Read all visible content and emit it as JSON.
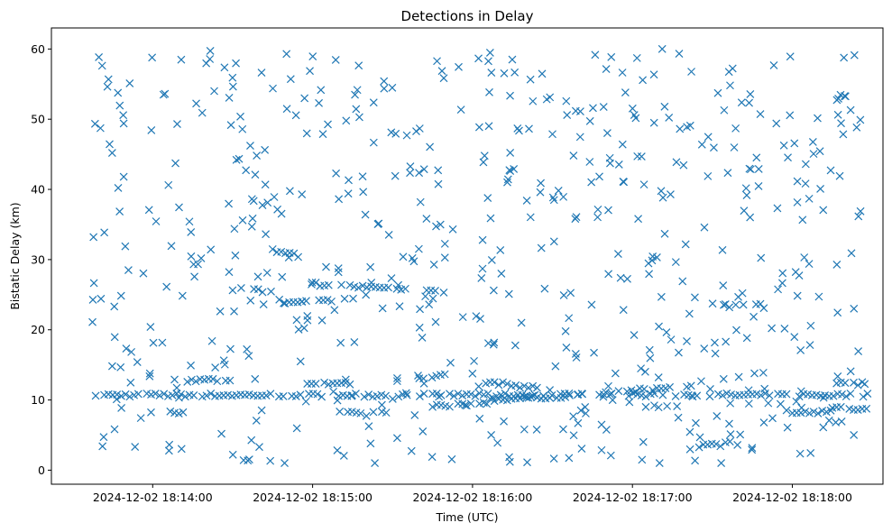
{
  "chart_data": {
    "type": "scatter",
    "title": "Detections in Delay",
    "xlabel": "Time (UTC)",
    "ylabel": "Bistatic Delay (km)",
    "marker": "x",
    "color": "#1f77b4",
    "grid": false,
    "xlim": [
      "2024-12-02 18:13:22",
      "2024-12-02 18:18:34"
    ],
    "ylim": [
      -2,
      63
    ],
    "xticks": [
      "2024-12-02 18:14:00",
      "2024-12-02 18:15:00",
      "2024-12-02 18:16:00",
      "2024-12-02 18:17:00",
      "2024-12-02 18:18:00"
    ],
    "xtick_labels": [
      "2024-12-02 18:14:00",
      "2024-12-02 18:15:00",
      "2024-12-02 18:16:00",
      "2024-12-02 18:17:00",
      "2024-12-02 18:18:00"
    ],
    "yticks": [
      0,
      10,
      20,
      30,
      40,
      50,
      60
    ],
    "ytick_labels": [
      "0",
      "10",
      "20",
      "30",
      "40",
      "50",
      "60"
    ],
    "time_range": [
      "2024-12-02 18:13:37",
      "2024-12-02 18:18:29"
    ],
    "tracks": [
      {
        "start": [
          "2024-12-02 18:13:37",
          10.7
        ],
        "end": [
          "2024-12-02 18:18:29",
          10.7
        ]
      },
      {
        "start": [
          "2024-12-02 18:14:05",
          12.8
        ],
        "end": [
          "2024-12-02 18:14:30",
          12.9
        ]
      },
      {
        "start": [
          "2024-12-02 18:14:05",
          8.3
        ],
        "end": [
          "2024-12-02 18:14:12",
          8.3
        ]
      },
      {
        "start": [
          "2024-12-02 18:14:45",
          31.4
        ],
        "end": [
          "2024-12-02 18:14:56",
          30.4
        ]
      },
      {
        "start": [
          "2024-12-02 18:14:30",
          25.8
        ],
        "end": [
          "2024-12-02 18:14:45",
          25.4
        ]
      },
      {
        "start": [
          "2024-12-02 18:14:40",
          23.6
        ],
        "end": [
          "2024-12-02 18:14:56",
          23.9
        ]
      },
      {
        "start": [
          "2024-12-02 18:14:56",
          23.9
        ],
        "end": [
          "2024-12-02 18:15:20",
          24.8
        ]
      },
      {
        "start": [
          "2024-12-02 18:14:58",
          26.6
        ],
        "end": [
          "2024-12-02 18:15:50",
          25.3
        ]
      },
      {
        "start": [
          "2024-12-02 18:14:58",
          12.3
        ],
        "end": [
          "2024-12-02 18:15:15",
          12.4
        ]
      },
      {
        "start": [
          "2024-12-02 18:15:10",
          8.2
        ],
        "end": [
          "2024-12-02 18:15:28",
          8.4
        ]
      },
      {
        "start": [
          "2024-12-02 18:15:40",
          13.2
        ],
        "end": [
          "2024-12-02 18:15:50",
          13.5
        ]
      },
      {
        "start": [
          "2024-12-02 18:15:45",
          9.2
        ],
        "end": [
          "2024-12-02 18:16:05",
          9.4
        ]
      },
      {
        "start": [
          "2024-12-02 18:16:05",
          12.6
        ],
        "end": [
          "2024-12-02 18:16:30",
          11.4
        ]
      },
      {
        "start": [
          "2024-12-02 18:16:05",
          10.0
        ],
        "end": [
          "2024-12-02 18:16:30",
          10.5
        ]
      },
      {
        "start": [
          "2024-12-02 18:16:30",
          10.4
        ],
        "end": [
          "2024-12-02 18:16:50",
          10.8
        ]
      },
      {
        "start": [
          "2024-12-02 18:16:50",
          11.0
        ],
        "end": [
          "2024-12-02 18:17:25",
          12.1
        ]
      },
      {
        "start": [
          "2024-12-02 18:17:05",
          9.0
        ],
        "end": [
          "2024-12-02 18:17:15",
          9.2
        ]
      },
      {
        "start": [
          "2024-12-02 18:17:25",
          3.5
        ],
        "end": [
          "2024-12-02 18:17:40",
          3.8
        ]
      },
      {
        "start": [
          "2024-12-02 18:17:40",
          23.5
        ],
        "end": [
          "2024-12-02 18:17:50",
          23.5
        ]
      },
      {
        "start": [
          "2024-12-02 18:18:00",
          8.1
        ],
        "end": [
          "2024-12-02 18:18:15",
          8.3
        ]
      },
      {
        "start": [
          "2024-12-02 18:18:15",
          12.4
        ],
        "end": [
          "2024-12-02 18:18:29",
          12.3
        ]
      },
      {
        "start": [
          "2024-12-02 18:18:15",
          8.8
        ],
        "end": [
          "2024-12-02 18:18:29",
          8.8
        ]
      }
    ],
    "approx_background_points": 600,
    "y_range_of_scatter": [
      1,
      60
    ]
  }
}
